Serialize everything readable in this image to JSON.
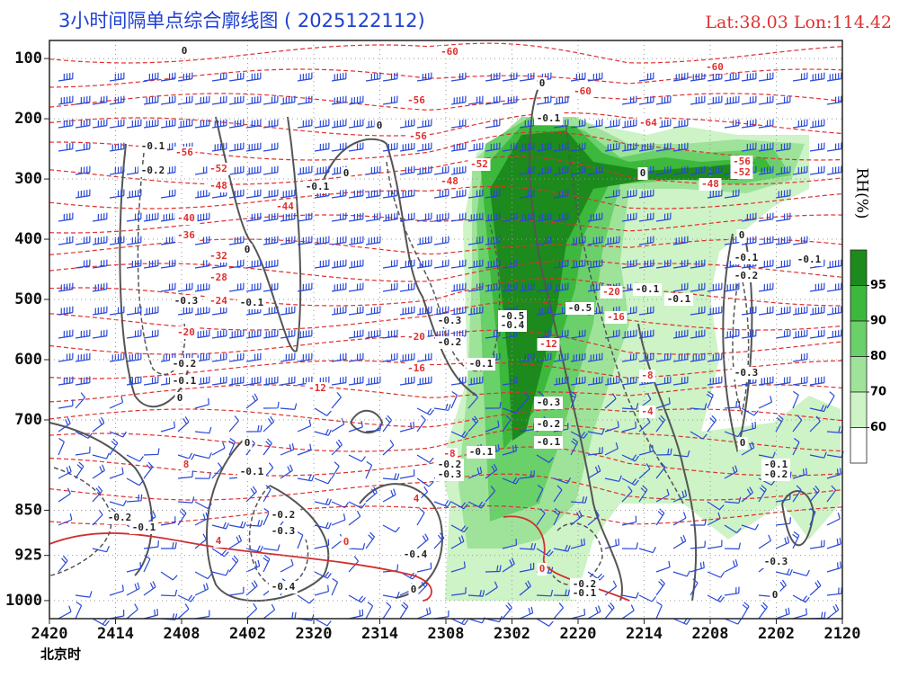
{
  "chart_data": {
    "type": "contour",
    "title": "3小时间隔单点综合廓线图 ( 2025122112)",
    "location": "Lat:38.03  Lon:114.42",
    "x_label": "北京时",
    "categories": [
      "2420",
      "2414",
      "2408",
      "2402",
      "2320",
      "2314",
      "2308",
      "2302",
      "2220",
      "2214",
      "2208",
      "2202",
      "2120"
    ],
    "ylim": [
      70,
      1030
    ],
    "yticks": [
      100,
      200,
      300,
      400,
      500,
      600,
      700,
      850,
      925,
      1000
    ],
    "grid": true,
    "colorbar": {
      "label": "RH(%)",
      "ticks": [
        95,
        90,
        80,
        70,
        60
      ],
      "colors": [
        "#1c8a1c",
        "#3cb83c",
        "#6ad06a",
        "#9fe39a",
        "#cdf3c6",
        "#ffffff"
      ]
    },
    "annotations": [
      {
        "text": "-60",
        "color": "#e03030"
      },
      {
        "text": "-60",
        "color": "#e03030"
      },
      {
        "text": "-60",
        "color": "#e03030"
      },
      {
        "text": "-56",
        "color": "#e03030"
      },
      {
        "text": "-64",
        "color": "#e03030"
      },
      {
        "text": "-56",
        "color": "#e03030"
      },
      {
        "text": "-56",
        "color": "#e03030"
      },
      {
        "text": "-52",
        "color": "#e03030"
      },
      {
        "text": "-52",
        "color": "#e03030"
      },
      {
        "text": "-48",
        "color": "#e03030"
      },
      {
        "text": "-48",
        "color": "#e03030"
      },
      {
        "text": "-44",
        "color": "#e03030"
      },
      {
        "text": "-40",
        "color": "#e03030"
      },
      {
        "text": "-36",
        "color": "#e03030"
      },
      {
        "text": "-32",
        "color": "#e03030"
      },
      {
        "text": "-28",
        "color": "#e03030"
      },
      {
        "text": "-24",
        "color": "#e03030"
      },
      {
        "text": "-20",
        "color": "#e03030"
      },
      {
        "text": "-20",
        "color": "#e03030"
      },
      {
        "text": "-16",
        "color": "#e03030"
      },
      {
        "text": "-12",
        "color": "#e03030"
      },
      {
        "text": "-12",
        "color": "#e03030"
      },
      {
        "text": "-16",
        "color": "#e03030"
      },
      {
        "text": "-20",
        "color": "#e03030"
      },
      {
        "text": "-8",
        "color": "#e03030"
      },
      {
        "text": "-4",
        "color": "#e03030"
      },
      {
        "text": "-8",
        "color": "#e03030"
      },
      {
        "text": "8",
        "color": "#e03030"
      },
      {
        "text": "4",
        "color": "#e03030"
      },
      {
        "text": "4",
        "color": "#e03030"
      },
      {
        "text": "0",
        "color": "#e03030"
      },
      {
        "text": "0",
        "color": "#e03030"
      },
      {
        "text": "-56",
        "color": "#e03030"
      },
      {
        "text": "-52",
        "color": "#e03030"
      },
      {
        "text": "-48",
        "color": "#e03030"
      },
      {
        "text": "-0.1",
        "color": "#222222"
      },
      {
        "text": "-0.2",
        "color": "#222222"
      },
      {
        "text": "-0.1",
        "color": "#222222"
      },
      {
        "text": "0",
        "color": "#222222"
      },
      {
        "text": "0",
        "color": "#222222"
      },
      {
        "text": "0",
        "color": "#222222"
      },
      {
        "text": "-0.3",
        "color": "#222222"
      },
      {
        "text": "-0.1",
        "color": "#222222"
      },
      {
        "text": "-0.2",
        "color": "#222222"
      },
      {
        "text": "-0.1",
        "color": "#222222"
      },
      {
        "text": "0",
        "color": "#222222"
      },
      {
        "text": "-0.3",
        "color": "#222222"
      },
      {
        "text": "-0.2",
        "color": "#222222"
      },
      {
        "text": "-0.1",
        "color": "#222222"
      },
      {
        "text": "-0.5",
        "color": "#222222"
      },
      {
        "text": "-0.4",
        "color": "#222222"
      },
      {
        "text": "-0.5",
        "color": "#222222"
      },
      {
        "text": "-0.1",
        "color": "#222222"
      },
      {
        "text": "-0.1",
        "color": "#222222"
      },
      {
        "text": "-0.3",
        "color": "#222222"
      },
      {
        "text": "-0.2",
        "color": "#222222"
      },
      {
        "text": "-0.1",
        "color": "#222222"
      },
      {
        "text": "-0.1",
        "color": "#222222"
      },
      {
        "text": "-0.2",
        "color": "#222222"
      },
      {
        "text": "-0.3",
        "color": "#222222"
      },
      {
        "text": "-0.1",
        "color": "#222222"
      },
      {
        "text": "0",
        "color": "#222222"
      },
      {
        "text": "0",
        "color": "#222222"
      },
      {
        "text": "0",
        "color": "#222222"
      },
      {
        "text": "-0.1",
        "color": "#222222"
      },
      {
        "text": "-0.2",
        "color": "#222222"
      },
      {
        "text": "-0.1",
        "color": "#222222"
      },
      {
        "text": "-0.3",
        "color": "#222222"
      },
      {
        "text": "0",
        "color": "#222222"
      },
      {
        "text": "-0.1",
        "color": "#222222"
      },
      {
        "text": "-0.2",
        "color": "#222222"
      },
      {
        "text": "-0.3",
        "color": "#222222"
      },
      {
        "text": "0",
        "color": "#222222"
      },
      {
        "text": "0",
        "color": "#222222"
      },
      {
        "text": "-0.1",
        "color": "#222222"
      },
      {
        "text": "-0.2",
        "color": "#222222"
      },
      {
        "text": "-0.1",
        "color": "#222222"
      },
      {
        "text": "-0.2",
        "color": "#222222"
      },
      {
        "text": "-0.3",
        "color": "#222222"
      },
      {
        "text": "-0.4",
        "color": "#222222"
      },
      {
        "text": "-0.4",
        "color": "#222222"
      },
      {
        "text": "0",
        "color": "#222222"
      },
      {
        "text": "-0.2",
        "color": "#222222"
      },
      {
        "text": "-0.1",
        "color": "#222222"
      },
      {
        "text": "0",
        "color": "#222222"
      }
    ]
  }
}
